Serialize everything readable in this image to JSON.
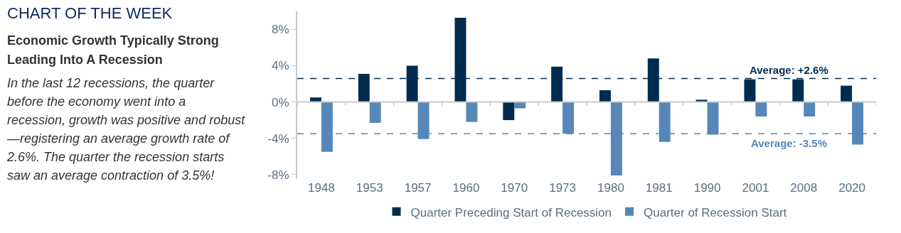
{
  "chart_data": {
    "type": "bar",
    "title": "CHART OF THE WEEK",
    "subtitle": "Economic Growth Typically Strong Leading Into A Recession",
    "annotations": [
      "In the last 12 recessions, the quarter before the economy went into a recession, growth was positive and robust—registering an average growth rate of 2.6%. The quarter the recession starts saw an average contraction of 3.5%!"
    ],
    "categories": [
      "1948",
      "1953",
      "1957",
      "1960",
      "1970",
      "1973",
      "1980",
      "1981",
      "1990",
      "2001",
      "2008",
      "2020"
    ],
    "series": [
      {
        "name": "Quarter Preceding Start of Recession",
        "color": "#002b4e",
        "values": [
          0.5,
          3.1,
          4.0,
          9.3,
          -2.0,
          3.9,
          1.3,
          4.8,
          0.25,
          2.5,
          2.5,
          1.8
        ]
      },
      {
        "name": "Quarter of Recession Start",
        "color": "#5588b8",
        "values": [
          -5.5,
          -2.3,
          -4.1,
          -2.2,
          -0.7,
          -3.5,
          -8.1,
          -4.4,
          -3.6,
          -1.6,
          -1.6,
          -4.7
        ]
      }
    ],
    "ylim": [
      -8.5,
      10
    ],
    "yticks": [
      {
        "value": -8,
        "label": "-8%"
      },
      {
        "value": -4,
        "label": "-4%"
      },
      {
        "value": 0,
        "label": "0%"
      },
      {
        "value": 4,
        "label": "4%"
      },
      {
        "value": 8,
        "label": "8%"
      }
    ],
    "ref_lines": [
      {
        "axis": "y",
        "value": 2.6,
        "label": "Average: +2.6%",
        "color": "#002b4e",
        "line_style": "dashed"
      },
      {
        "axis": "y",
        "value": -3.5,
        "label": "Average: -3.5%",
        "color": "#5588b8",
        "line_style": "dashed"
      }
    ],
    "legend": "bottom"
  }
}
